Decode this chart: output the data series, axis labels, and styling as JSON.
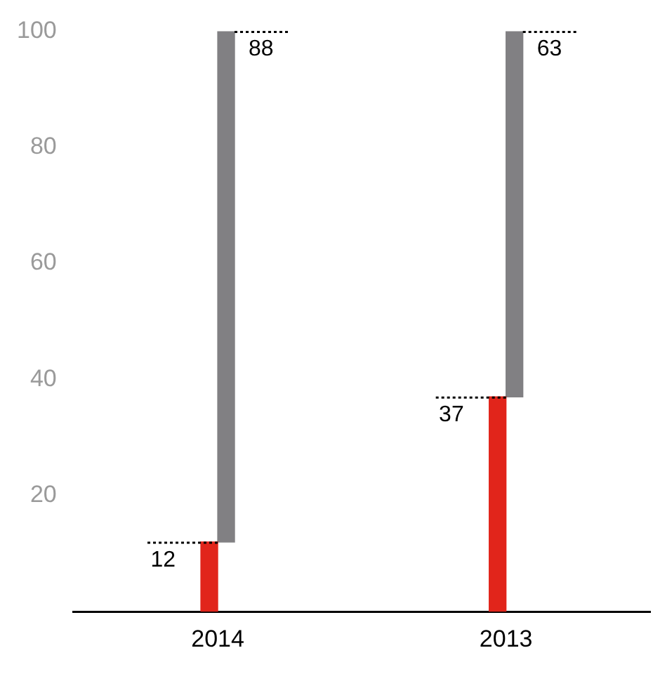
{
  "chart_data": {
    "type": "bar",
    "categories": [
      "2014",
      "2013"
    ],
    "series": [
      {
        "color": "#e1251b",
        "values": [
          12,
          37
        ],
        "value_labels": [
          "12",
          "37"
        ]
      },
      {
        "color": "#818083",
        "values": [
          88,
          63
        ],
        "base": [
          12,
          37
        ],
        "value_labels": [
          "88",
          "63"
        ]
      }
    ],
    "ylim": [
      0,
      100
    ],
    "yticks": [
      20,
      40,
      60,
      80,
      100
    ],
    "grid": false,
    "legend": false
  }
}
